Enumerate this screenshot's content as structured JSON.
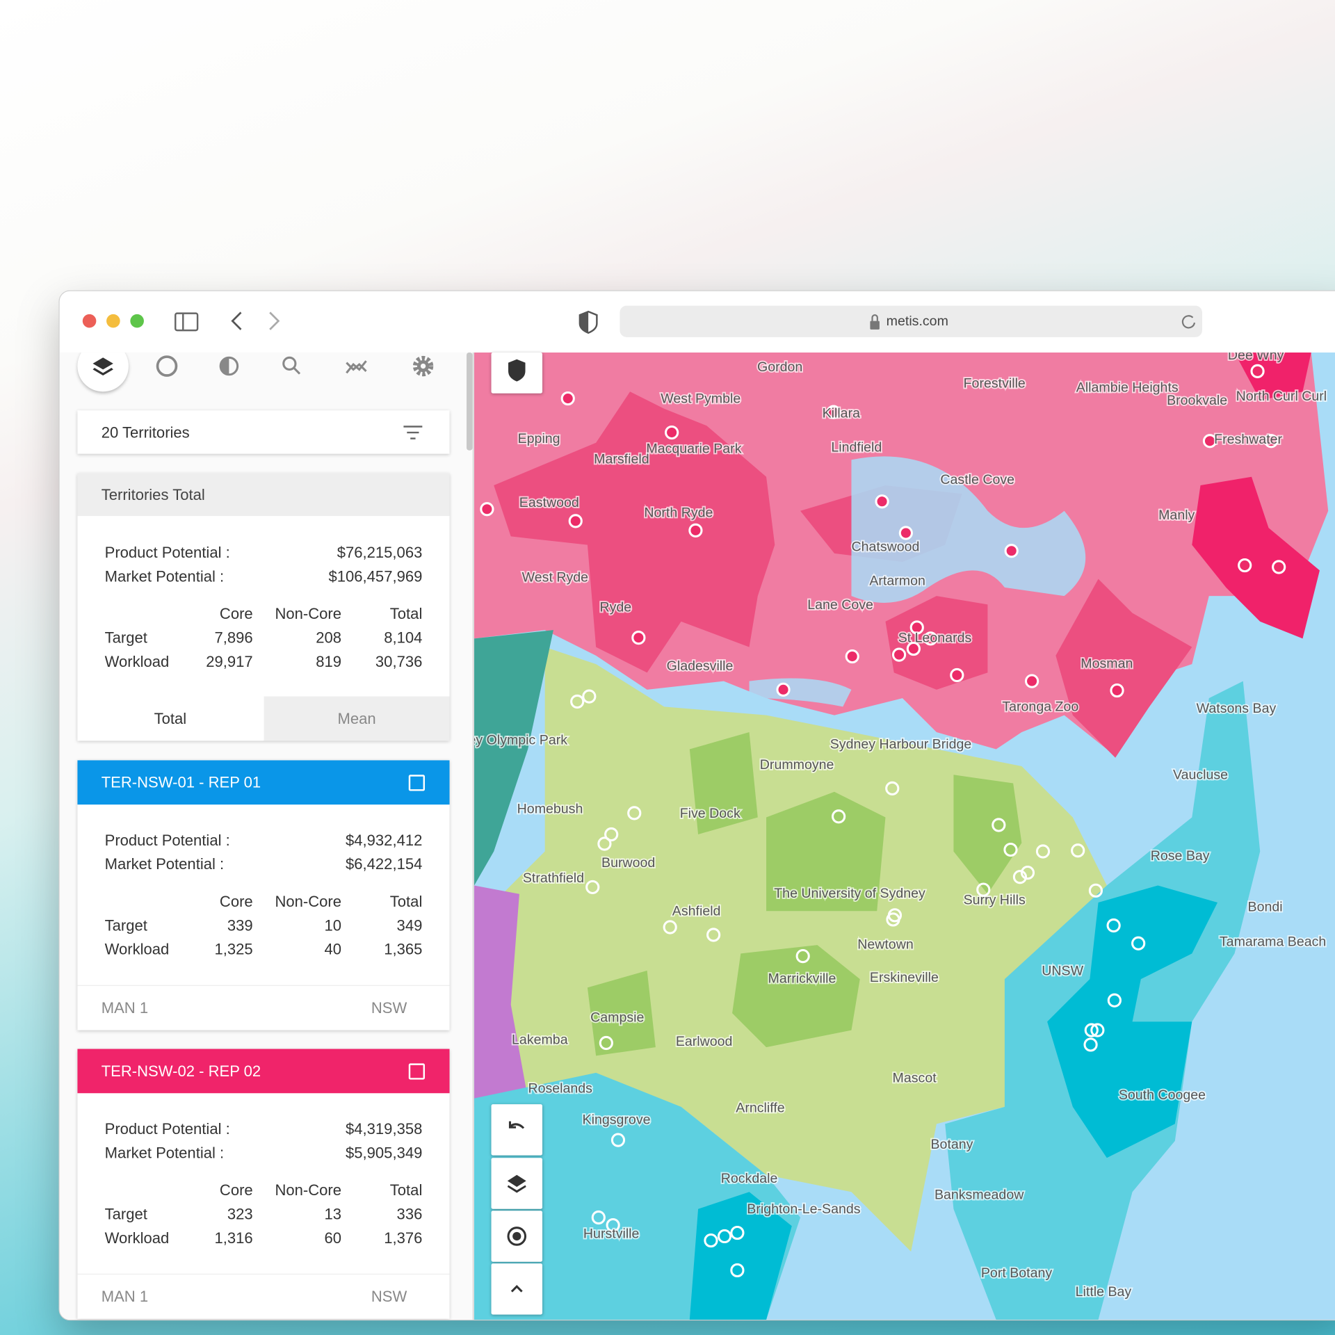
{
  "browser": {
    "url": "metis.com"
  },
  "sidebar": {
    "territory_count": "20 Territories",
    "summary": {
      "title": "Territories Total",
      "potentials": [
        [
          "Product Potential :",
          "$76,215,063"
        ],
        [
          "Market Potential :",
          "$106,457,969"
        ]
      ],
      "columns": [
        "Core",
        "Non-Core",
        "Total"
      ],
      "rows": [
        [
          "Target",
          "7,896",
          "208",
          "8,104"
        ],
        [
          "Workload",
          "29,917",
          "819",
          "30,736"
        ]
      ],
      "tabs": [
        "Total",
        "Mean"
      ]
    },
    "territories": [
      {
        "name": "TER-NSW-01 - REP 01",
        "color": "#0a96e8",
        "potentials": [
          [
            "Product Potential :",
            "$4,932,412"
          ],
          [
            "Market Potential :",
            "$6,422,154"
          ]
        ],
        "columns": [
          "Core",
          "Non-Core",
          "Total"
        ],
        "rows": [
          [
            "Target",
            "339",
            "10",
            "349"
          ],
          [
            "Workload",
            "1,325",
            "40",
            "1,365"
          ]
        ],
        "manager": "MAN 1",
        "state": "NSW"
      },
      {
        "name": "TER-NSW-02 - REP 02",
        "color": "#f0246a",
        "potentials": [
          [
            "Product Potential :",
            "$4,319,358"
          ],
          [
            "Market Potential :",
            "$5,905,349"
          ]
        ],
        "columns": [
          "Core",
          "Non-Core",
          "Total"
        ],
        "rows": [
          [
            "Target",
            "323",
            "13",
            "336"
          ],
          [
            "Workload",
            "1,316",
            "60",
            "1,376"
          ]
        ],
        "manager": "MAN 1",
        "state": "NSW"
      }
    ]
  },
  "map": {
    "labels": [
      "Gordon",
      "West Pymble",
      "Killara",
      "Forestville",
      "Allambie Heights",
      "Brookvale",
      "Dee Why",
      "North Curl Curl",
      "Freshwater",
      "Epping",
      "Macquarie Park",
      "Marsfield",
      "Lindfield",
      "Castle Cove",
      "Eastwood",
      "North Ryde",
      "Chatswood",
      "Manly",
      "West Ryde",
      "Artarmon",
      "Lane Cove",
      "Ryde",
      "St Leonards",
      "Gladesville",
      "Mosman",
      "Taronga Zoo",
      "Watsons Bay",
      "Sydney Olympic Park",
      "Sydney Harbour Bridge",
      "Drummoyne",
      "Vaucluse",
      "Homebush",
      "Five Dock",
      "Rose Bay",
      "Burwood",
      "Strathfield",
      "The University of Sydney",
      "Surry Hills",
      "Ashfield",
      "Bondi",
      "Tamarama Beach",
      "Newtown",
      "Marrickville",
      "Erskineville",
      "UNSW",
      "Campsie",
      "Lakemba",
      "Earlwood",
      "Roselands",
      "Mascot",
      "South Coogee",
      "Kingsgrove",
      "Arncliffe",
      "Botany",
      "Rockdale",
      "Brighton-Le-Sands",
      "Banksmeadow",
      "Hurstville",
      "Port Botany",
      "Little Bay"
    ]
  }
}
